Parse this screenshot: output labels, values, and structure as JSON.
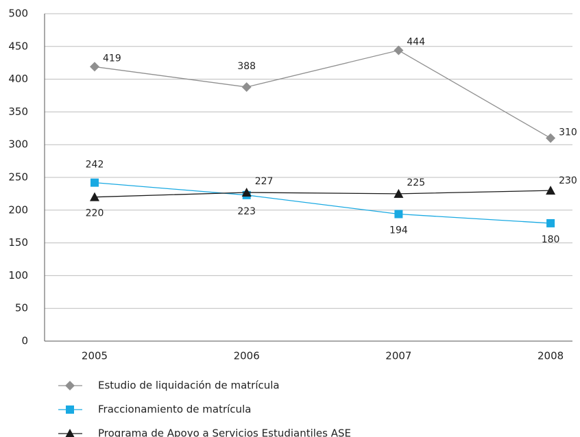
{
  "chart_data": {
    "type": "line",
    "categories": [
      "2005",
      "2006",
      "2007",
      "2008"
    ],
    "series": [
      {
        "name": "Estudio de liquidación de matrícula",
        "color": "#8f8f8f",
        "marker": "diamond",
        "values": [
          419,
          388,
          444,
          310
        ]
      },
      {
        "name": "Fraccionamiento de matrícula",
        "color": "#19a9e2",
        "marker": "square",
        "values": [
          242,
          223,
          194,
          180
        ]
      },
      {
        "name": "Programa de Apoyo a Servicios Estudiantiles ASE",
        "color": "#1a1a1a",
        "marker": "triangle",
        "values": [
          220,
          227,
          225,
          230
        ]
      }
    ],
    "ylim": [
      0,
      500
    ],
    "yticks": [
      0,
      50,
      100,
      150,
      200,
      250,
      300,
      350,
      400,
      450,
      500
    ],
    "grid": true
  }
}
